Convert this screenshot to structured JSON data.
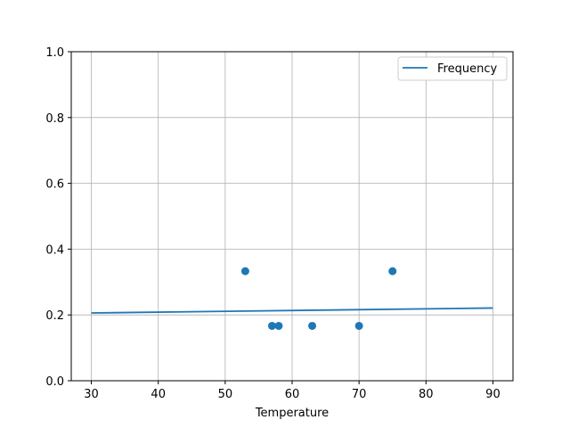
{
  "chart_data": {
    "type": "scatter",
    "title": "",
    "xlabel": "Temperature",
    "ylabel": "",
    "xlim": [
      27,
      93
    ],
    "ylim": [
      0,
      1.0
    ],
    "grid": true,
    "xticks": [
      30,
      40,
      50,
      60,
      70,
      80,
      90
    ],
    "yticks": [
      "0.0",
      "0.2",
      "0.4",
      "0.6",
      "0.8",
      "1.0"
    ],
    "legend": {
      "placement": "top-right",
      "entries": [
        "Frequency"
      ]
    },
    "scatter": {
      "x": [
        53,
        57,
        58,
        63,
        70,
        75
      ],
      "y": [
        0.333,
        0.1667,
        0.1667,
        0.1667,
        0.1667,
        0.333
      ],
      "color": "#1f77b4"
    },
    "series": [
      {
        "name": "Frequency",
        "type": "line",
        "x": [
          30,
          90
        ],
        "y": [
          0.206,
          0.221
        ],
        "color": "#1f77b4"
      }
    ]
  }
}
